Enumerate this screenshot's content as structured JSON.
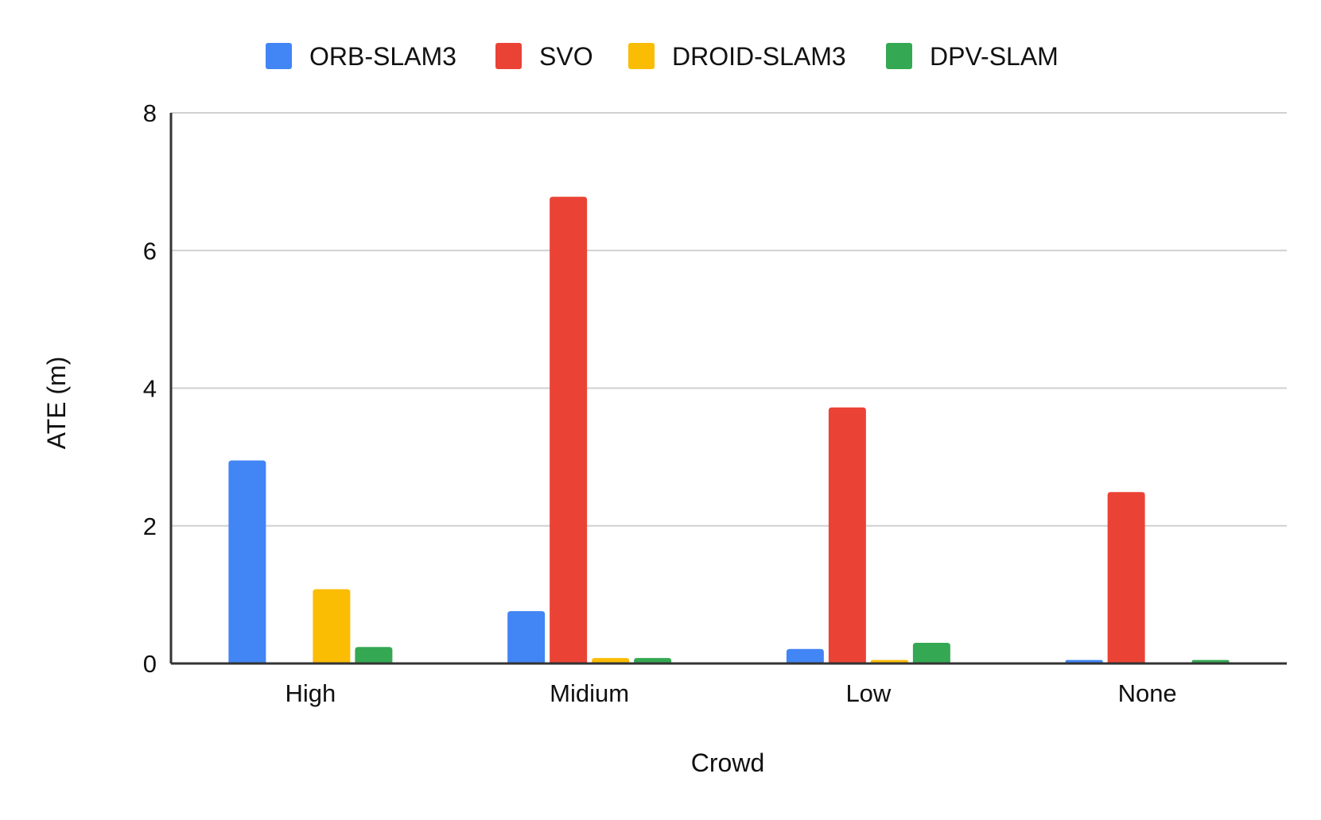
{
  "chart_data": {
    "type": "bar",
    "title": "",
    "xlabel": "Crowd",
    "ylabel": "ATE (m)",
    "categories": [
      "High",
      "Midium",
      "Low",
      "None"
    ],
    "ylim": [
      0,
      8
    ],
    "yticks": [
      0,
      2,
      4,
      6,
      8
    ],
    "grid": true,
    "legend_position": "top",
    "series": [
      {
        "name": "ORB-SLAM3",
        "color": "#4285F4",
        "values": [
          2.95,
          0.76,
          0.21,
          0.05
        ]
      },
      {
        "name": "SVO",
        "color": "#EA4335",
        "values": [
          null,
          6.78,
          3.72,
          2.49
        ]
      },
      {
        "name": "DROID-SLAM3",
        "color": "#FBBC04",
        "values": [
          1.08,
          0.08,
          0.05,
          null
        ]
      },
      {
        "name": "DPV-SLAM",
        "color": "#34A853",
        "values": [
          0.24,
          0.08,
          0.3,
          0.05
        ]
      }
    ]
  }
}
